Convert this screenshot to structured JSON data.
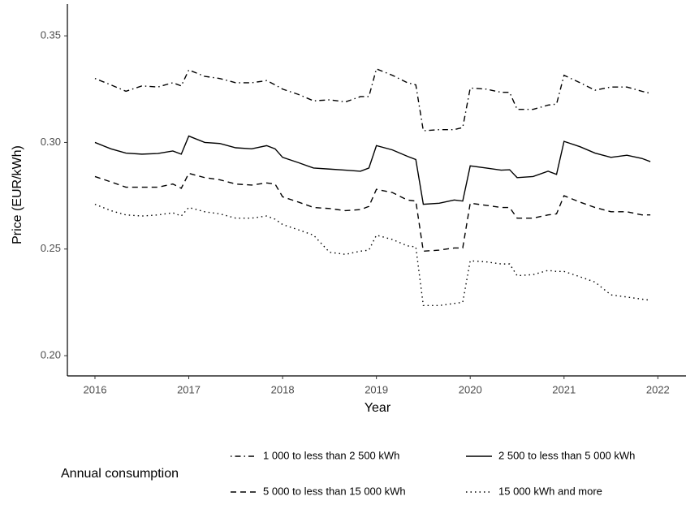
{
  "chart_data": {
    "type": "line",
    "x_label": "Year",
    "y_label": "Price (EUR/kWh)",
    "legend_title": "Annual consumption",
    "legend_position": "bottom",
    "xlim": [
      2015.706,
      2022.3
    ],
    "ylim": [
      0.1905,
      0.3649
    ],
    "xticks": [
      2016,
      2017,
      2018,
      2019,
      2020,
      2021,
      2022
    ],
    "yticks": [
      {
        "value": 0.2,
        "label": "0.20"
      },
      0.25,
      {
        "value": 0.3,
        "label": "0.30"
      },
      0.35
    ],
    "x": [
      2016,
      2016.17,
      2016.33,
      2016.5,
      2016.67,
      2016.83,
      2016.92,
      2017,
      2017.17,
      2017.33,
      2017.5,
      2017.67,
      2017.83,
      2017.92,
      2018,
      2018.17,
      2018.33,
      2018.5,
      2018.67,
      2018.83,
      2018.92,
      2019,
      2019.17,
      2019.33,
      2019.42,
      2019.5,
      2019.67,
      2019.83,
      2019.92,
      2020,
      2020.17,
      2020.33,
      2020.42,
      2020.5,
      2020.67,
      2020.83,
      2020.92,
      2021,
      2021.17,
      2021.33,
      2021.5,
      2021.67,
      2021.83,
      2021.92
    ],
    "series": [
      {
        "name": "1 000 to less than 2 500 kWh",
        "color": "#000000",
        "linestyle": "dashdot",
        "values": [
          0.33,
          0.327,
          0.324,
          0.3265,
          0.326,
          0.328,
          0.3265,
          0.334,
          0.331,
          0.33,
          0.328,
          0.328,
          0.329,
          0.327,
          0.325,
          0.3225,
          0.3195,
          0.32,
          0.319,
          0.3215,
          0.3215,
          0.3345,
          0.3315,
          0.328,
          0.327,
          0.3055,
          0.306,
          0.306,
          0.307,
          0.3255,
          0.325,
          0.3235,
          0.3235,
          0.3155,
          0.3155,
          0.3175,
          0.318,
          0.3315,
          0.328,
          0.3245,
          0.326,
          0.326,
          0.324,
          0.323
        ]
      },
      {
        "name": "2 500 to less than 5 000 kWh",
        "color": "#000000",
        "linestyle": "solid",
        "values": [
          0.3,
          0.297,
          0.295,
          0.2945,
          0.2948,
          0.296,
          0.2945,
          0.303,
          0.3,
          0.2995,
          0.2975,
          0.297,
          0.2985,
          0.297,
          0.293,
          0.2905,
          0.288,
          0.2875,
          0.287,
          0.2865,
          0.288,
          0.2985,
          0.2965,
          0.2935,
          0.292,
          0.271,
          0.2715,
          0.273,
          0.2725,
          0.289,
          0.288,
          0.287,
          0.2872,
          0.2835,
          0.284,
          0.2865,
          0.285,
          0.3005,
          0.298,
          0.295,
          0.293,
          0.294,
          0.2925,
          0.291
        ]
      },
      {
        "name": "5 000 to less than 15 000 kWh",
        "color": "#000000",
        "linestyle": "dashed",
        "values": [
          0.284,
          0.2815,
          0.279,
          0.279,
          0.279,
          0.2805,
          0.2785,
          0.2855,
          0.2835,
          0.2825,
          0.2805,
          0.28,
          0.281,
          0.2805,
          0.2745,
          0.272,
          0.2695,
          0.269,
          0.268,
          0.2685,
          0.27,
          0.278,
          0.2765,
          0.273,
          0.2725,
          0.249,
          0.2495,
          0.2505,
          0.2505,
          0.2715,
          0.2705,
          0.2695,
          0.2695,
          0.2645,
          0.2645,
          0.266,
          0.2665,
          0.275,
          0.272,
          0.2695,
          0.2675,
          0.2675,
          0.266,
          0.266
        ]
      },
      {
        "name": "15 000 kWh and more",
        "color": "#000000",
        "linestyle": "dotted",
        "values": [
          0.271,
          0.268,
          0.266,
          0.2655,
          0.266,
          0.267,
          0.2655,
          0.2695,
          0.2675,
          0.2665,
          0.2645,
          0.2645,
          0.2655,
          0.264,
          0.2615,
          0.259,
          0.2565,
          0.2485,
          0.2475,
          0.249,
          0.2495,
          0.2565,
          0.2545,
          0.2515,
          0.251,
          0.2235,
          0.2235,
          0.2245,
          0.225,
          0.2445,
          0.244,
          0.243,
          0.243,
          0.2375,
          0.238,
          0.24,
          0.2395,
          0.2395,
          0.237,
          0.2345,
          0.2285,
          0.2275,
          0.2265,
          0.226
        ]
      }
    ]
  }
}
